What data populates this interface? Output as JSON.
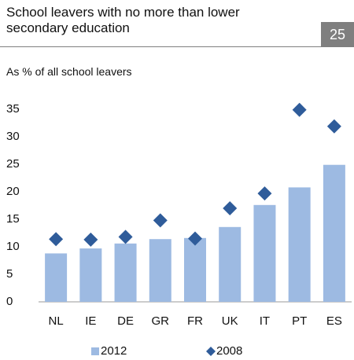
{
  "chart_data": {
    "type": "bar",
    "title": "School leavers with no more than lower secondary education",
    "figure_number": "25",
    "subtitle": "As % of all school leavers",
    "categories": [
      "NL",
      "IE",
      "DE",
      "GR",
      "FR",
      "UK",
      "IT",
      "PT",
      "ES"
    ],
    "series": [
      {
        "name": "2012",
        "type": "bar",
        "color": "#9dbae2",
        "values": [
          8.8,
          9.7,
          10.6,
          11.4,
          11.6,
          13.6,
          17.6,
          20.8,
          24.9
        ]
      },
      {
        "name": "2008",
        "type": "scatter",
        "color": "#2f5c9a",
        "values": [
          11.4,
          11.3,
          11.8,
          14.8,
          11.5,
          17.0,
          19.7,
          34.9,
          31.9
        ]
      }
    ],
    "ylim": [
      0,
      35
    ],
    "yticks": [
      0,
      5,
      10,
      15,
      20,
      25,
      30,
      35
    ],
    "grid": false,
    "legend": "bottom"
  }
}
